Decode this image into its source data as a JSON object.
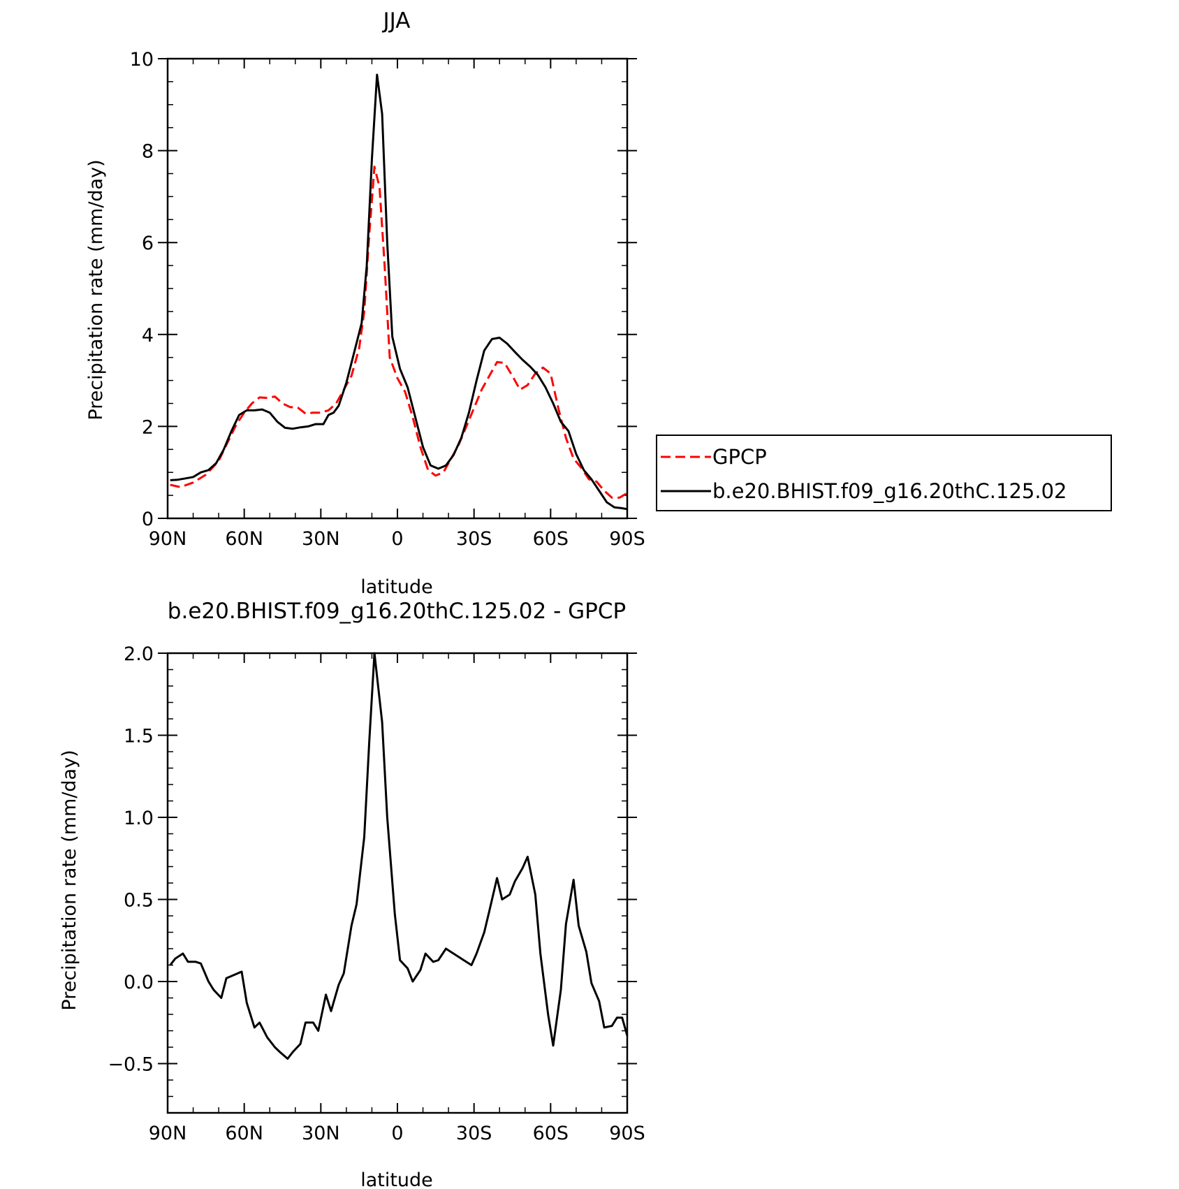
{
  "chart_data": [
    {
      "type": "line",
      "title": "JJA",
      "xlabel": "latitude",
      "ylabel": "Precipitation rate (mm/day)",
      "xlim": [
        -90,
        90
      ],
      "ylim": [
        0,
        10
      ],
      "x_ticks": [
        {
          "value": -90,
          "label": "90N"
        },
        {
          "value": -60,
          "label": "60N"
        },
        {
          "value": -30,
          "label": "30N"
        },
        {
          "value": 0,
          "label": "0"
        },
        {
          "value": 30,
          "label": "30S"
        },
        {
          "value": 60,
          "label": "60S"
        },
        {
          "value": 90,
          "label": "90S"
        }
      ],
      "y_ticks": [
        {
          "value": 0,
          "label": "0"
        },
        {
          "value": 2,
          "label": "2"
        },
        {
          "value": 4,
          "label": "4"
        },
        {
          "value": 6,
          "label": "6"
        },
        {
          "value": 8,
          "label": "8"
        },
        {
          "value": 10,
          "label": "10"
        }
      ],
      "legend_position": "right",
      "series": [
        {
          "name": "GPCP",
          "color": "#ff0000",
          "style": "dashed",
          "points": [
            [
              -89,
              0.73
            ],
            [
              -85,
              0.68
            ],
            [
              -80,
              0.78
            ],
            [
              -75,
              0.95
            ],
            [
              -70,
              1.25
            ],
            [
              -67,
              1.6
            ],
            [
              -63,
              2.05
            ],
            [
              -60,
              2.3
            ],
            [
              -57,
              2.5
            ],
            [
              -54,
              2.63
            ],
            [
              -51,
              2.62
            ],
            [
              -48,
              2.65
            ],
            [
              -45,
              2.5
            ],
            [
              -42,
              2.42
            ],
            [
              -39,
              2.41
            ],
            [
              -36,
              2.28
            ],
            [
              -33,
              2.3
            ],
            [
              -30,
              2.3
            ],
            [
              -27,
              2.35
            ],
            [
              -24,
              2.5
            ],
            [
              -21,
              2.8
            ],
            [
              -18,
              3.1
            ],
            [
              -15,
              3.7
            ],
            [
              -13,
              4.5
            ],
            [
              -11,
              6.2
            ],
            [
              -9,
              7.65
            ],
            [
              -7,
              7.2
            ],
            [
              -5,
              5.5
            ],
            [
              -3,
              3.5
            ],
            [
              0,
              3.05
            ],
            [
              3,
              2.75
            ],
            [
              6,
              2.2
            ],
            [
              9,
              1.55
            ],
            [
              12,
              1.05
            ],
            [
              15,
              0.93
            ],
            [
              18,
              1.0
            ],
            [
              21,
              1.3
            ],
            [
              24,
              1.6
            ],
            [
              27,
              2.0
            ],
            [
              30,
              2.4
            ],
            [
              33,
              2.8
            ],
            [
              36,
              3.1
            ],
            [
              39,
              3.4
            ],
            [
              42,
              3.38
            ],
            [
              45,
              3.1
            ],
            [
              48,
              2.8
            ],
            [
              51,
              2.9
            ],
            [
              54,
              3.15
            ],
            [
              57,
              3.28
            ],
            [
              60,
              3.15
            ],
            [
              63,
              2.4
            ],
            [
              66,
              1.75
            ],
            [
              69,
              1.3
            ],
            [
              72,
              1.1
            ],
            [
              75,
              0.85
            ],
            [
              78,
              0.8
            ],
            [
              81,
              0.6
            ],
            [
              84,
              0.45
            ],
            [
              87,
              0.45
            ],
            [
              90,
              0.55
            ]
          ]
        },
        {
          "name": "b.e20.BHIST.f09_g16.20thC.125.02",
          "color": "#000000",
          "style": "solid",
          "points": [
            [
              -89,
              0.83
            ],
            [
              -86,
              0.84
            ],
            [
              -83,
              0.87
            ],
            [
              -80,
              0.9
            ],
            [
              -77,
              1.0
            ],
            [
              -74,
              1.05
            ],
            [
              -71,
              1.2
            ],
            [
              -68,
              1.5
            ],
            [
              -65,
              1.9
            ],
            [
              -62,
              2.25
            ],
            [
              -59,
              2.35
            ],
            [
              -56,
              2.35
            ],
            [
              -53,
              2.37
            ],
            [
              -50,
              2.3
            ],
            [
              -47,
              2.1
            ],
            [
              -44,
              1.97
            ],
            [
              -41,
              1.95
            ],
            [
              -38,
              1.98
            ],
            [
              -35,
              2.0
            ],
            [
              -32,
              2.05
            ],
            [
              -29,
              2.05
            ],
            [
              -27,
              2.25
            ],
            [
              -25,
              2.3
            ],
            [
              -23,
              2.45
            ],
            [
              -20,
              2.95
            ],
            [
              -17,
              3.6
            ],
            [
              -14,
              4.25
            ],
            [
              -12,
              5.5
            ],
            [
              -10,
              7.8
            ],
            [
              -8,
              9.65
            ],
            [
              -6,
              8.8
            ],
            [
              -4,
              6.0
            ],
            [
              -2,
              3.95
            ],
            [
              1,
              3.25
            ],
            [
              4,
              2.85
            ],
            [
              7,
              2.2
            ],
            [
              10,
              1.55
            ],
            [
              13,
              1.15
            ],
            [
              16,
              1.08
            ],
            [
              19,
              1.15
            ],
            [
              22,
              1.38
            ],
            [
              25,
              1.75
            ],
            [
              28,
              2.3
            ],
            [
              31,
              3.0
            ],
            [
              34,
              3.65
            ],
            [
              37,
              3.9
            ],
            [
              40,
              3.93
            ],
            [
              43,
              3.8
            ],
            [
              46,
              3.62
            ],
            [
              49,
              3.45
            ],
            [
              52,
              3.3
            ],
            [
              55,
              3.12
            ],
            [
              58,
              2.85
            ],
            [
              61,
              2.5
            ],
            [
              64,
              2.1
            ],
            [
              67,
              1.9
            ],
            [
              70,
              1.4
            ],
            [
              73,
              1.05
            ],
            [
              76,
              0.85
            ],
            [
              79,
              0.6
            ],
            [
              82,
              0.35
            ],
            [
              85,
              0.24
            ],
            [
              88,
              0.22
            ],
            [
              90,
              0.2
            ]
          ]
        }
      ]
    },
    {
      "type": "line",
      "title": "b.e20.BHIST.f09_g16.20thC.125.02 - GPCP",
      "xlabel": "latitude",
      "ylabel": "Precipitation rate (mm/day)",
      "xlim": [
        -90,
        90
      ],
      "ylim": [
        -0.8,
        2.0
      ],
      "x_ticks": [
        {
          "value": -90,
          "label": "90N"
        },
        {
          "value": -60,
          "label": "60N"
        },
        {
          "value": -30,
          "label": "30N"
        },
        {
          "value": 0,
          "label": "0"
        },
        {
          "value": 30,
          "label": "30S"
        },
        {
          "value": 60,
          "label": "60S"
        },
        {
          "value": 90,
          "label": "90S"
        }
      ],
      "y_ticks": [
        {
          "value": -0.5,
          "label": "−0.5"
        },
        {
          "value": 0.0,
          "label": "0.0"
        },
        {
          "value": 0.5,
          "label": "0.5"
        },
        {
          "value": 1.0,
          "label": "1.0"
        },
        {
          "value": 1.5,
          "label": "1.5"
        },
        {
          "value": 2.0,
          "label": "2.0"
        }
      ],
      "series": [
        {
          "color": "#000000",
          "style": "solid",
          "points": [
            [
              -89,
              0.1
            ],
            [
              -87,
              0.14
            ],
            [
              -84,
              0.17
            ],
            [
              -82,
              0.12
            ],
            [
              -79,
              0.12
            ],
            [
              -77,
              0.11
            ],
            [
              -74,
              0.0
            ],
            [
              -72,
              -0.05
            ],
            [
              -69,
              -0.1
            ],
            [
              -67,
              0.02
            ],
            [
              -64,
              0.04
            ],
            [
              -61,
              0.06
            ],
            [
              -59,
              -0.13
            ],
            [
              -56,
              -0.28
            ],
            [
              -54,
              -0.25
            ],
            [
              -51,
              -0.34
            ],
            [
              -48,
              -0.4
            ],
            [
              -46,
              -0.43
            ],
            [
              -43,
              -0.47
            ],
            [
              -41,
              -0.43
            ],
            [
              -38,
              -0.38
            ],
            [
              -36,
              -0.25
            ],
            [
              -33,
              -0.25
            ],
            [
              -31,
              -0.3
            ],
            [
              -28,
              -0.08
            ],
            [
              -26,
              -0.18
            ],
            [
              -23,
              -0.02
            ],
            [
              -21,
              0.05
            ],
            [
              -18,
              0.34
            ],
            [
              -16,
              0.47
            ],
            [
              -13,
              0.88
            ],
            [
              -11,
              1.47
            ],
            [
              -9,
              2.0
            ],
            [
              -6,
              1.58
            ],
            [
              -4,
              1.0
            ],
            [
              -1,
              0.41
            ],
            [
              1,
              0.13
            ],
            [
              4,
              0.08
            ],
            [
              6,
              0.0
            ],
            [
              9,
              0.07
            ],
            [
              11,
              0.17
            ],
            [
              14,
              0.12
            ],
            [
              16,
              0.13
            ],
            [
              19,
              0.2
            ],
            [
              21,
              0.18
            ],
            [
              24,
              0.15
            ],
            [
              26,
              0.13
            ],
            [
              29,
              0.1
            ],
            [
              31,
              0.17
            ],
            [
              34,
              0.3
            ],
            [
              36,
              0.43
            ],
            [
              39,
              0.63
            ],
            [
              41,
              0.5
            ],
            [
              44,
              0.53
            ],
            [
              46,
              0.61
            ],
            [
              49,
              0.69
            ],
            [
              51,
              0.76
            ],
            [
              54,
              0.53
            ],
            [
              56,
              0.17
            ],
            [
              59,
              -0.2
            ],
            [
              61,
              -0.39
            ],
            [
              64,
              -0.05
            ],
            [
              66,
              0.35
            ],
            [
              69,
              0.62
            ],
            [
              71,
              0.34
            ],
            [
              74,
              0.18
            ],
            [
              76,
              -0.01
            ],
            [
              79,
              -0.12
            ],
            [
              81,
              -0.28
            ],
            [
              84,
              -0.27
            ],
            [
              86,
              -0.22
            ],
            [
              88,
              -0.22
            ],
            [
              90,
              -0.33
            ]
          ]
        }
      ]
    }
  ]
}
